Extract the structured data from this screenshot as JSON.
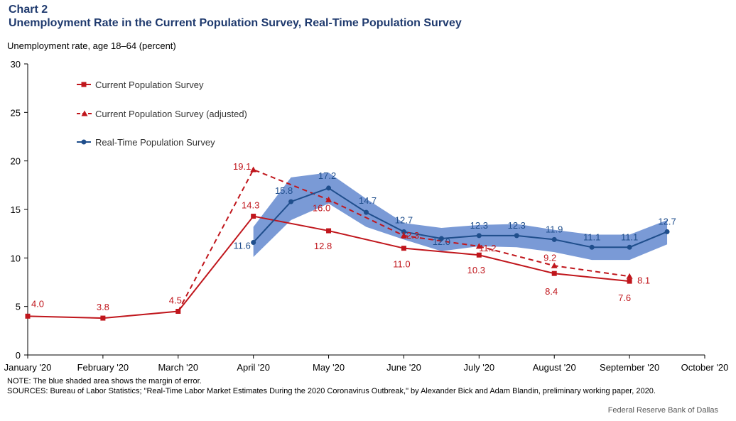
{
  "header": {
    "chart_label": "Chart 2",
    "title": "Unemployment Rate in the Current Population Survey, Real-Time Population Survey"
  },
  "footer": {
    "note": "NOTE: The blue shaded area shows the margin of error.",
    "sources": "SOURCES: Bureau of Labor Statistics; \"Real-Time Labor Market Estimates During the 2020 Coronavirus Outbreak,\" by Alexander Bick and Adam Blandin, preliminary working paper, 2020.",
    "credit": "Federal Reserve Bank of Dallas"
  },
  "colors": {
    "cps": "#c0161c",
    "rps": "#1f4e8c",
    "band": "#7a9ad6"
  },
  "chart_data": {
    "type": "line",
    "ylabel": "Unemployment rate, age 18–64 (percent)",
    "xlabel": "",
    "ylim": [
      0,
      30
    ],
    "yticks": [
      0,
      5,
      10,
      15,
      20,
      25,
      30
    ],
    "xlim": [
      0,
      9
    ],
    "x_tick_labels": [
      "January '20",
      "February '20",
      "March '20",
      "April '20",
      "May '20",
      "June '20",
      "July '20",
      "August '20",
      "September '20",
      "October '20"
    ],
    "legend_placement": "top-left",
    "grid": false,
    "series": [
      {
        "name": "Current Population Survey",
        "style": "solid",
        "marker": "square",
        "x": [
          0,
          1,
          2,
          3,
          4,
          5,
          6,
          7,
          8
        ],
        "values": [
          4.0,
          3.8,
          4.5,
          14.3,
          12.8,
          11.0,
          10.3,
          8.4,
          7.6
        ],
        "labels": [
          "4.0",
          "3.8",
          "4.5",
          "14.3",
          "12.8",
          "11.0",
          "10.3",
          "8.4",
          "7.6"
        ]
      },
      {
        "name": "Current Population Survey (adjusted)",
        "style": "dashed",
        "marker": "triangle",
        "x": [
          2,
          3,
          4,
          5,
          6,
          7,
          8
        ],
        "values": [
          4.5,
          19.1,
          16.0,
          12.3,
          11.2,
          9.2,
          8.1
        ],
        "labels": [
          "",
          "19.1",
          "16.0",
          "12.3",
          "11.2",
          "9.2",
          "8.1"
        ]
      },
      {
        "name": "Real-Time Population Survey",
        "style": "solid",
        "marker": "circle",
        "x": [
          3,
          3.5,
          4,
          4.5,
          5,
          5.5,
          6,
          6.5,
          7,
          7.5,
          8,
          8.5
        ],
        "values": [
          11.6,
          15.8,
          17.2,
          14.7,
          12.7,
          12.0,
          12.3,
          12.3,
          11.9,
          11.1,
          11.1,
          12.7
        ],
        "labels": [
          "11.6",
          "15.8",
          "17.2",
          "14.7",
          "12.7",
          "12.0",
          "12.3",
          "12.3",
          "11.9",
          "11.1",
          "11.1",
          "12.7"
        ],
        "band_upper": [
          13.2,
          18.3,
          18.8,
          16.1,
          13.6,
          13.1,
          13.4,
          13.5,
          12.9,
          12.4,
          12.4,
          13.9
        ],
        "band_lower": [
          10.1,
          13.9,
          15.6,
          13.2,
          11.9,
          10.7,
          11.2,
          11.1,
          10.6,
          9.8,
          9.8,
          11.4
        ]
      }
    ]
  }
}
